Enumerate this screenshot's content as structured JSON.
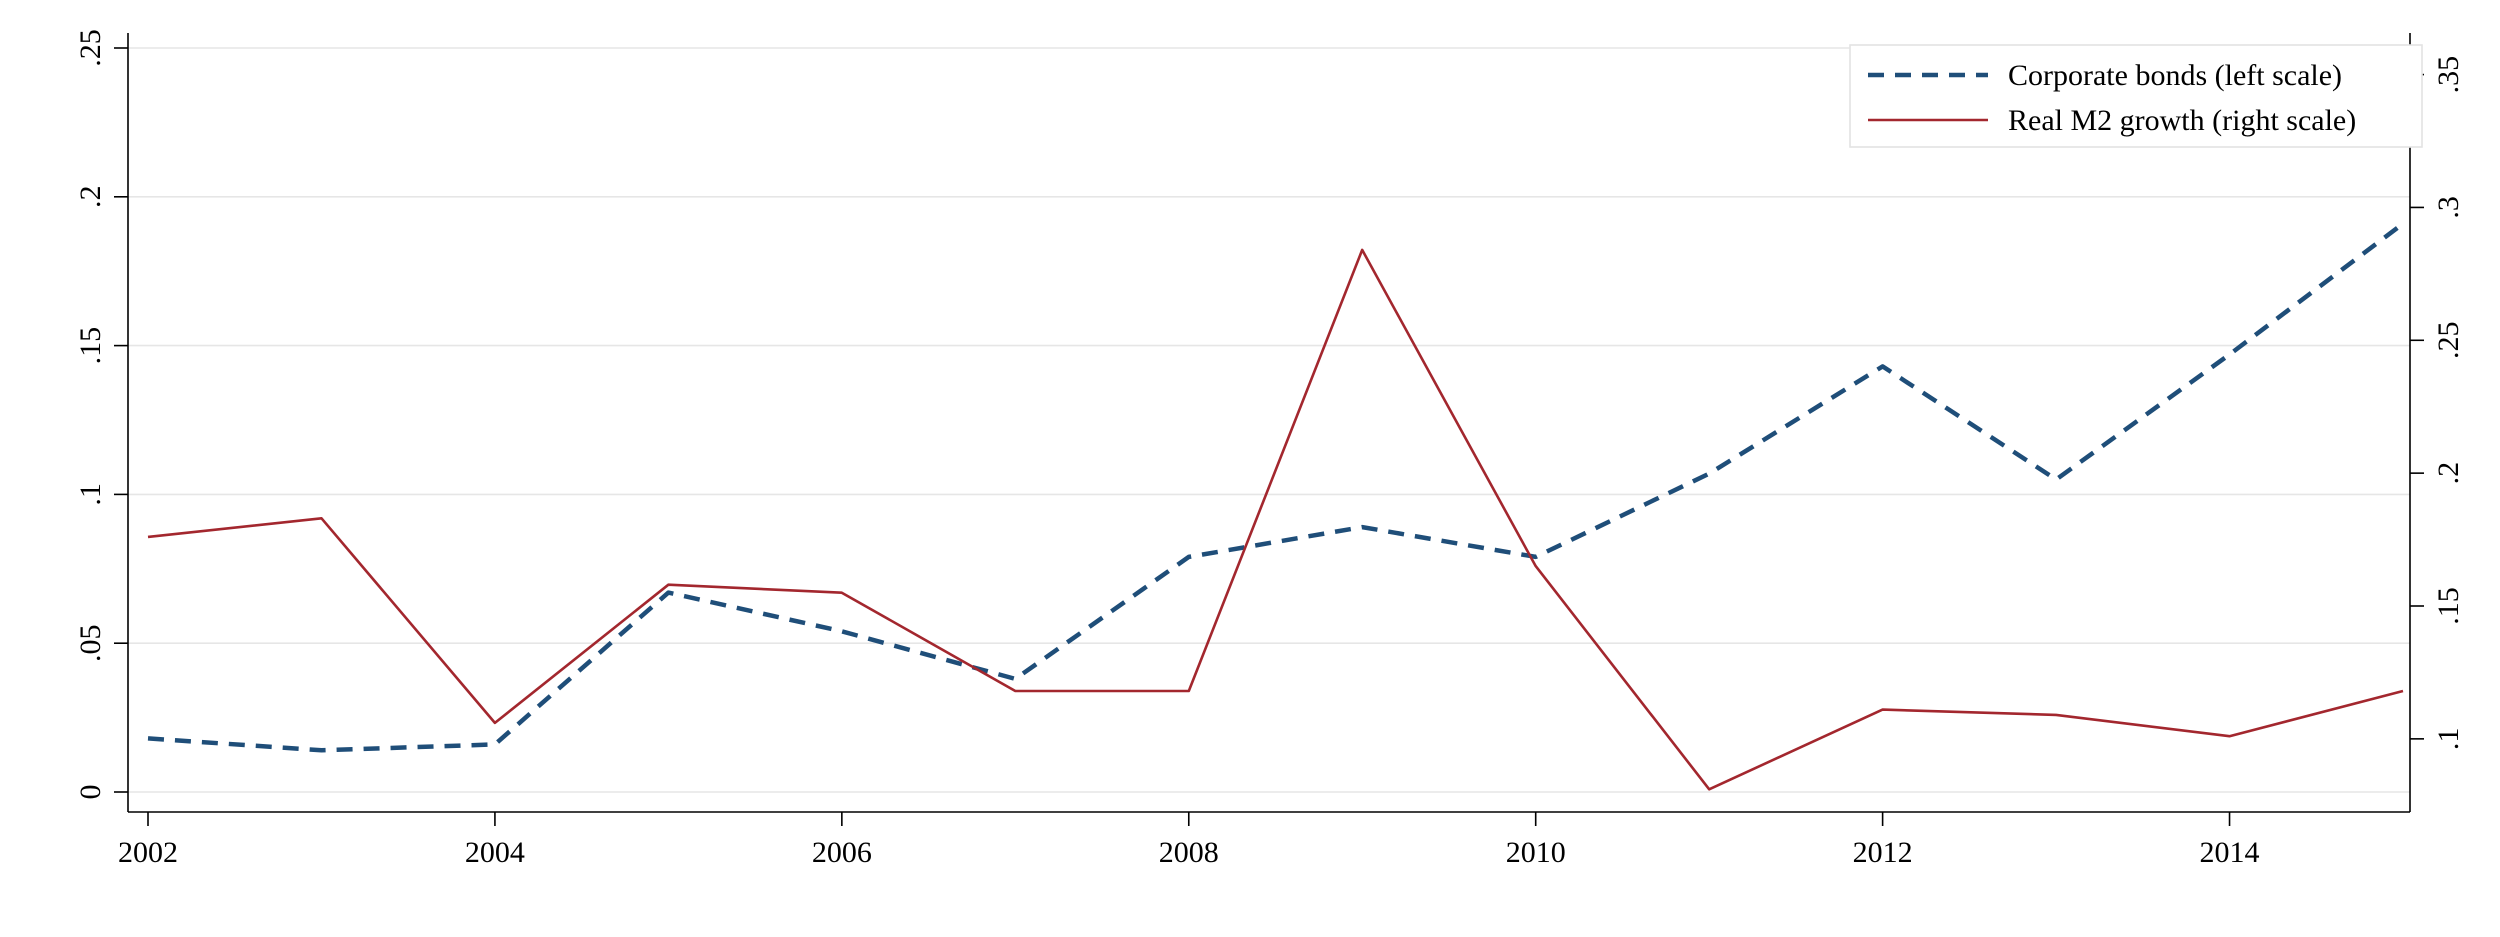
{
  "chart_data": {
    "type": "line",
    "title": "",
    "xlabel": "",
    "ylabel": "",
    "x": [
      2002,
      2003,
      2004,
      2005,
      2006,
      2007,
      2008,
      2009,
      2010,
      2011,
      2012,
      2013,
      2014,
      2015
    ],
    "xticks": [
      "2002",
      "2004",
      "2006",
      "2008",
      "2010",
      "2012",
      "2014"
    ],
    "xtick_values": [
      2002,
      2004,
      2006,
      2008,
      2010,
      2012,
      2014
    ],
    "xlim": [
      2002,
      2015
    ],
    "y_left": {
      "ylim": [
        0,
        0.25
      ],
      "ticks": [
        0,
        0.05,
        0.1,
        0.15,
        0.2,
        0.25
      ],
      "tick_labels": [
        "0",
        ".05",
        ".1",
        ".15",
        ".2",
        ".25"
      ]
    },
    "y_right": {
      "ylim": [
        0.08,
        0.36
      ],
      "ticks": [
        0.1,
        0.15,
        0.2,
        0.25,
        0.3,
        0.35
      ],
      "tick_labels": [
        ".1",
        ".15",
        ".2",
        ".25",
        ".3",
        ".35"
      ]
    },
    "grid": true,
    "legend_position": "top-right",
    "series": [
      {
        "name": "Corporate bonds (left scale)",
        "axis": "left",
        "style": "dashed",
        "color": "#1f4e79",
        "values": [
          0.018,
          0.014,
          0.016,
          0.067,
          0.054,
          0.038,
          0.079,
          0.089,
          0.079,
          0.107,
          0.143,
          0.105,
          0.147,
          0.191
        ]
      },
      {
        "name": "Real M2 growth (right scale)",
        "axis": "right",
        "style": "solid",
        "color": "#a3272e",
        "values": [
          0.176,
          0.183,
          0.106,
          0.158,
          0.155,
          0.118,
          0.118,
          0.284,
          0.165,
          0.081,
          0.111,
          0.109,
          0.101,
          0.118
        ]
      }
    ]
  }
}
